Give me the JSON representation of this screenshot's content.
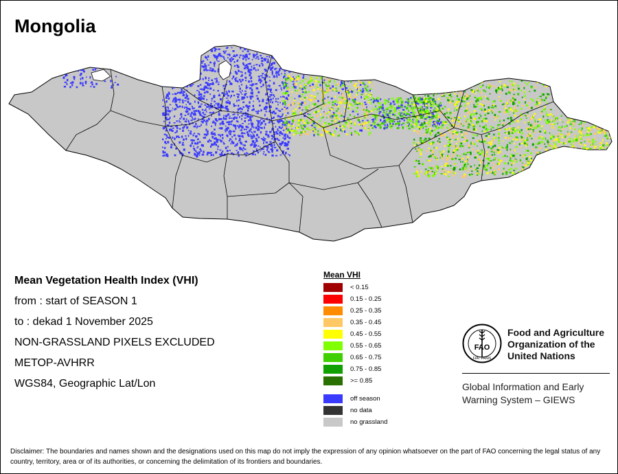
{
  "map": {
    "title": "Mongolia"
  },
  "info_lines": [
    "Mean Vegetation Health Index (VHI)",
    "from    : start of SEASON 1",
    "to      : dekad 1 November 2025",
    "NON-GRASSLAND PIXELS EXCLUDED",
    "METOP-AVHRR",
    "WGS84, Geographic Lat/Lon"
  ],
  "legend": {
    "title": "Mean VHI",
    "classes": [
      {
        "label": "< 0.15",
        "color": "#a00000"
      },
      {
        "label": "0.15 - 0.25",
        "color": "#ff0000"
      },
      {
        "label": "0.25 - 0.35",
        "color": "#ff8c00"
      },
      {
        "label": "0.35 - 0.45",
        "color": "#ffc864"
      },
      {
        "label": "0.45 - 0.55",
        "color": "#ffff00"
      },
      {
        "label": "0.55 - 0.65",
        "color": "#80ff00"
      },
      {
        "label": "0.65 - 0.75",
        "color": "#40d000"
      },
      {
        "label": "0.75 - 0.85",
        "color": "#10a000"
      },
      {
        "label": ">= 0.85",
        "color": "#287000"
      }
    ],
    "special": [
      {
        "label": "off season",
        "color": "#3a3aff"
      },
      {
        "label": "no data",
        "color": "#333333"
      },
      {
        "label": "no grassland",
        "color": "#c8c8c8"
      }
    ]
  },
  "organization": {
    "emblem_letters": "FAO",
    "emblem_motto": "FIAT PANIS",
    "name_lines": [
      "Food and Agriculture",
      "Organization of the",
      "United Nations"
    ],
    "system_lines": [
      "Global Information and Early",
      "Warning System – GIEWS"
    ]
  },
  "disclaimer": "Disclaimer: The boundaries and names shown and the designations used on this map do not imply the expression of any opinion whatsoever on the part of FAO concerning the legal status of any country, territory, area or of its authorities, or concerning the delimitation of its frontiers and boundaries."
}
